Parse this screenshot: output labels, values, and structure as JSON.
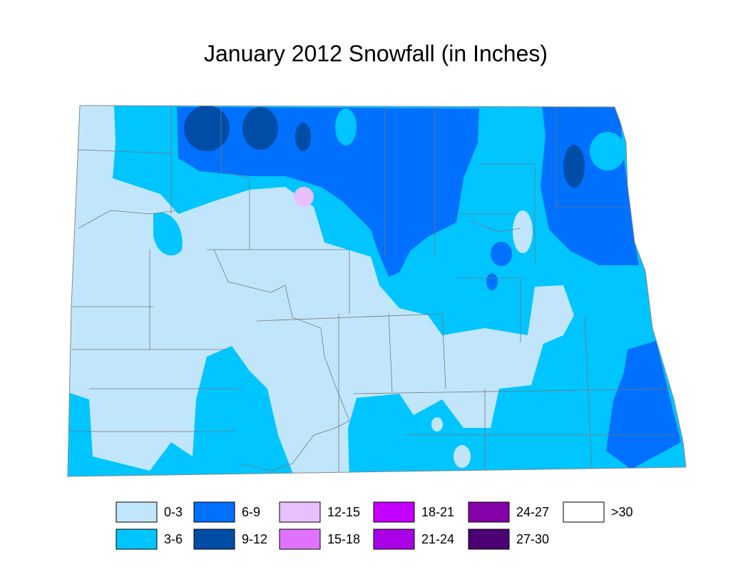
{
  "title": "January 2012 Snowfall (in Inches)",
  "legend": [
    {
      "label": "0-3",
      "color": "#c1e6fb"
    },
    {
      "label": "3-6",
      "color": "#00c5ff"
    },
    {
      "label": "6-9",
      "color": "#0070ff"
    },
    {
      "label": "9-12",
      "color": "#004da8"
    },
    {
      "label": "12-15",
      "color": "#e8bfff"
    },
    {
      "label": "15-18",
      "color": "#df73ff"
    },
    {
      "label": "18-21",
      "color": "#c500ff"
    },
    {
      "label": "21-24",
      "color": "#a900e6"
    },
    {
      "label": "24-27",
      "color": "#8400a8"
    },
    {
      "label": "27-30",
      "color": "#4c0073"
    },
    {
      "label": ">30",
      "color": "#ffffff"
    }
  ]
}
